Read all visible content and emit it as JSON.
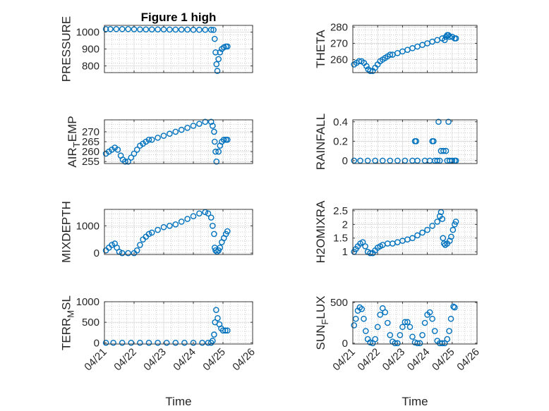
{
  "figure": {
    "title": "Figure 1 high"
  },
  "style": {
    "marker_color": "#0072bd",
    "axes_color": "#262626",
    "grid_color": "#b0b0b0",
    "grid": "major+minor dotted"
  },
  "chart_data": [
    {
      "type": "scatter",
      "ylabel": "PRESSURE",
      "title": "Figure 1 high",
      "xlim": [
        0,
        5
      ],
      "xticks": [
        0,
        1,
        2,
        3,
        4,
        5
      ],
      "xticklabels": [
        "04/21",
        "04/22",
        "04/23",
        "04/24",
        "04/25",
        "04/26"
      ],
      "ylim": [
        760,
        1040
      ],
      "yticks": [
        800,
        900,
        1000
      ],
      "yticklabels": [
        "800",
        "900",
        "1000"
      ],
      "points": [
        [
          0.05,
          1018
        ],
        [
          0.2,
          1018
        ],
        [
          0.4,
          1018
        ],
        [
          0.6,
          1018
        ],
        [
          0.8,
          1018
        ],
        [
          1,
          1017
        ],
        [
          1.2,
          1016
        ],
        [
          1.4,
          1016
        ],
        [
          1.6,
          1016
        ],
        [
          1.8,
          1016
        ],
        [
          2,
          1016
        ],
        [
          2.2,
          1015
        ],
        [
          2.4,
          1015
        ],
        [
          2.6,
          1015
        ],
        [
          2.8,
          1015
        ],
        [
          3,
          1014
        ],
        [
          3.2,
          1014
        ],
        [
          3.4,
          1014
        ],
        [
          3.6,
          1014
        ],
        [
          3.68,
          1013
        ],
        [
          3.72,
          960
        ],
        [
          3.75,
          880
        ],
        [
          3.78,
          810
        ],
        [
          3.81,
          770
        ],
        [
          3.85,
          840
        ],
        [
          3.9,
          880
        ],
        [
          3.96,
          900
        ],
        [
          4.03,
          910
        ],
        [
          4.1,
          915
        ],
        [
          4.15,
          915
        ]
      ]
    },
    {
      "type": "scatter",
      "ylabel": "THETA",
      "xlim": [
        0,
        5
      ],
      "xticks": [
        0,
        1,
        2,
        3,
        4,
        5
      ],
      "xticklabels": [
        "04/21",
        "04/22",
        "04/23",
        "04/24",
        "04/25",
        "04/26"
      ],
      "ylim": [
        252,
        281
      ],
      "yticks": [
        260,
        270,
        280
      ],
      "yticklabels": [
        "260",
        "270",
        "280"
      ],
      "points": [
        [
          0.05,
          257
        ],
        [
          0.15,
          258
        ],
        [
          0.25,
          259
        ],
        [
          0.35,
          259
        ],
        [
          0.45,
          258
        ],
        [
          0.55,
          256
        ],
        [
          0.62,
          254
        ],
        [
          0.7,
          253
        ],
        [
          0.8,
          253
        ],
        [
          0.9,
          255
        ],
        [
          1,
          257
        ],
        [
          1.1,
          259
        ],
        [
          1.2,
          260
        ],
        [
          1.3,
          261
        ],
        [
          1.4,
          262
        ],
        [
          1.5,
          263
        ],
        [
          1.6,
          263
        ],
        [
          1.8,
          264
        ],
        [
          2,
          265
        ],
        [
          2.2,
          266
        ],
        [
          2.4,
          267
        ],
        [
          2.6,
          268
        ],
        [
          2.8,
          269
        ],
        [
          3,
          270
        ],
        [
          3.2,
          271
        ],
        [
          3.4,
          272
        ],
        [
          3.6,
          273
        ],
        [
          3.7,
          272
        ],
        [
          3.75,
          274
        ],
        [
          3.8,
          275
        ],
        [
          3.85,
          275
        ],
        [
          3.9,
          274
        ],
        [
          4,
          274
        ],
        [
          4.1,
          273
        ],
        [
          4.15,
          273
        ]
      ]
    },
    {
      "type": "scatter",
      "ylabel": "AIR_TEMP",
      "xlim": [
        0,
        5
      ],
      "xticks": [
        0,
        1,
        2,
        3,
        4,
        5
      ],
      "xticklabels": [
        "04/21",
        "04/22",
        "04/23",
        "04/24",
        "04/25",
        "04/26"
      ],
      "ylim": [
        254,
        276
      ],
      "yticks": [
        255,
        260,
        265,
        270
      ],
      "yticklabels": [
        "255",
        "260",
        "265",
        "270"
      ],
      "points": [
        [
          0.05,
          259
        ],
        [
          0.15,
          260
        ],
        [
          0.25,
          261
        ],
        [
          0.35,
          262
        ],
        [
          0.45,
          261
        ],
        [
          0.55,
          258
        ],
        [
          0.62,
          256
        ],
        [
          0.7,
          255
        ],
        [
          0.8,
          255
        ],
        [
          0.9,
          257
        ],
        [
          1,
          259
        ],
        [
          1.1,
          261
        ],
        [
          1.2,
          263
        ],
        [
          1.3,
          264
        ],
        [
          1.4,
          265
        ],
        [
          1.5,
          266
        ],
        [
          1.6,
          266
        ],
        [
          1.8,
          267
        ],
        [
          2,
          268
        ],
        [
          2.2,
          269
        ],
        [
          2.4,
          270
        ],
        [
          2.6,
          271
        ],
        [
          2.8,
          272
        ],
        [
          3,
          273
        ],
        [
          3.2,
          274
        ],
        [
          3.4,
          275
        ],
        [
          3.6,
          275
        ],
        [
          3.65,
          273
        ],
        [
          3.7,
          270
        ],
        [
          3.72,
          265
        ],
        [
          3.75,
          260
        ],
        [
          3.78,
          255
        ],
        [
          3.85,
          260
        ],
        [
          3.9,
          263
        ],
        [
          3.96,
          265
        ],
        [
          4.03,
          266
        ],
        [
          4.1,
          266
        ],
        [
          4.15,
          266
        ]
      ]
    },
    {
      "type": "scatter",
      "ylabel": "RAINFALL",
      "xlim": [
        0,
        5
      ],
      "xticks": [
        0,
        1,
        2,
        3,
        4,
        5
      ],
      "xticklabels": [
        "04/21",
        "04/22",
        "04/23",
        "04/24",
        "04/25",
        "04/26"
      ],
      "ylim": [
        -0.03,
        0.42
      ],
      "yticks": [
        0,
        0.2,
        0.4
      ],
      "yticklabels": [
        "0",
        "0.2",
        "0.4"
      ],
      "points": [
        [
          0.05,
          0
        ],
        [
          0.3,
          0
        ],
        [
          0.6,
          0
        ],
        [
          0.9,
          0
        ],
        [
          1.2,
          0
        ],
        [
          1.5,
          0
        ],
        [
          1.8,
          0
        ],
        [
          2.1,
          0
        ],
        [
          2.4,
          0
        ],
        [
          2.5,
          0.2
        ],
        [
          2.55,
          0.2
        ],
        [
          2.6,
          0
        ],
        [
          2.9,
          0
        ],
        [
          3.1,
          0
        ],
        [
          3.2,
          0.2
        ],
        [
          3.25,
          0.2
        ],
        [
          3.3,
          0
        ],
        [
          3.4,
          0
        ],
        [
          3.45,
          0.4
        ],
        [
          3.5,
          0
        ],
        [
          3.55,
          0.1
        ],
        [
          3.65,
          0.1
        ],
        [
          3.75,
          0.1
        ],
        [
          3.8,
          0
        ],
        [
          3.85,
          0.4
        ],
        [
          3.9,
          0
        ],
        [
          4.0,
          0
        ],
        [
          4.1,
          0
        ],
        [
          4.15,
          0
        ]
      ]
    },
    {
      "type": "scatter",
      "ylabel": "MIXDEPTH",
      "xlim": [
        0,
        5
      ],
      "xticks": [
        0,
        1,
        2,
        3,
        4,
        5
      ],
      "xticklabels": [
        "04/21",
        "04/22",
        "04/23",
        "04/24",
        "04/25",
        "04/26"
      ],
      "ylim": [
        -50,
        1600
      ],
      "yticks": [
        0,
        1000
      ],
      "yticklabels": [
        "0",
        "1000"
      ],
      "points": [
        [
          0.05,
          100
        ],
        [
          0.15,
          200
        ],
        [
          0.25,
          300
        ],
        [
          0.35,
          350
        ],
        [
          0.42,
          200
        ],
        [
          0.5,
          50
        ],
        [
          0.6,
          0
        ],
        [
          0.8,
          0
        ],
        [
          1,
          0
        ],
        [
          1.1,
          100
        ],
        [
          1.2,
          300
        ],
        [
          1.3,
          500
        ],
        [
          1.4,
          600
        ],
        [
          1.5,
          700
        ],
        [
          1.6,
          750
        ],
        [
          1.8,
          850
        ],
        [
          2,
          950
        ],
        [
          2.2,
          1000
        ],
        [
          2.4,
          1050
        ],
        [
          2.6,
          1150
        ],
        [
          2.8,
          1250
        ],
        [
          3,
          1350
        ],
        [
          3.2,
          1450
        ],
        [
          3.4,
          1500
        ],
        [
          3.5,
          1450
        ],
        [
          3.6,
          1300
        ],
        [
          3.65,
          1000
        ],
        [
          3.7,
          700
        ],
        [
          3.72,
          200
        ],
        [
          3.75,
          100
        ],
        [
          3.8,
          50
        ],
        [
          3.85,
          100
        ],
        [
          3.9,
          200
        ],
        [
          3.96,
          400
        ],
        [
          4.03,
          550
        ],
        [
          4.1,
          700
        ],
        [
          4.15,
          800
        ]
      ]
    },
    {
      "type": "scatter",
      "ylabel": "H2OMIXRA",
      "xlim": [
        0,
        5
      ],
      "xticks": [
        0,
        1,
        2,
        3,
        4,
        5
      ],
      "xticklabels": [
        "04/21",
        "04/22",
        "04/23",
        "04/24",
        "04/25",
        "04/26"
      ],
      "ylim": [
        0.9,
        2.55
      ],
      "yticks": [
        1,
        1.5,
        2,
        2.5
      ],
      "yticklabels": [
        "1",
        "1.5",
        "2",
        "2.5"
      ],
      "points": [
        [
          0.05,
          1.0
        ],
        [
          0.12,
          1.1
        ],
        [
          0.2,
          1.2
        ],
        [
          0.3,
          1.3
        ],
        [
          0.4,
          1.35
        ],
        [
          0.5,
          1.2
        ],
        [
          0.6,
          1.0
        ],
        [
          0.7,
          0.95
        ],
        [
          0.8,
          0.95
        ],
        [
          0.9,
          1.05
        ],
        [
          1,
          1.15
        ],
        [
          1.1,
          1.2
        ],
        [
          1.2,
          1.25
        ],
        [
          1.4,
          1.3
        ],
        [
          1.6,
          1.3
        ],
        [
          1.8,
          1.35
        ],
        [
          2,
          1.4
        ],
        [
          2.2,
          1.45
        ],
        [
          2.4,
          1.5
        ],
        [
          2.6,
          1.6
        ],
        [
          2.8,
          1.7
        ],
        [
          3,
          1.8
        ],
        [
          3.2,
          1.95
        ],
        [
          3.4,
          2.1
        ],
        [
          3.5,
          2.3
        ],
        [
          3.55,
          2.45
        ],
        [
          3.6,
          2.2
        ],
        [
          3.63,
          1.5
        ],
        [
          3.67,
          1.3
        ],
        [
          3.72,
          1.25
        ],
        [
          3.8,
          1.3
        ],
        [
          3.9,
          1.4
        ],
        [
          3.96,
          1.55
        ],
        [
          4.03,
          1.8
        ],
        [
          4.1,
          2.0
        ],
        [
          4.15,
          2.1
        ]
      ]
    },
    {
      "type": "scatter",
      "ylabel": "TERR_MSL",
      "xlabel": "Time",
      "xlim": [
        0,
        5
      ],
      "xticks": [
        0,
        1,
        2,
        3,
        4,
        5
      ],
      "xticklabels": [
        "04/21",
        "04/22",
        "04/23",
        "04/24",
        "04/25",
        "04/26"
      ],
      "ylim": [
        -30,
        1000
      ],
      "yticks": [
        0,
        500,
        1000
      ],
      "yticklabels": [
        "0",
        "500",
        "1000"
      ],
      "points": [
        [
          0.05,
          0
        ],
        [
          0.3,
          0
        ],
        [
          0.6,
          0
        ],
        [
          0.9,
          0
        ],
        [
          1.2,
          0
        ],
        [
          1.5,
          0
        ],
        [
          1.8,
          0
        ],
        [
          2.1,
          0
        ],
        [
          2.4,
          0
        ],
        [
          2.7,
          0
        ],
        [
          3,
          0
        ],
        [
          3.3,
          0
        ],
        [
          3.5,
          0
        ],
        [
          3.6,
          0
        ],
        [
          3.65,
          50
        ],
        [
          3.7,
          200
        ],
        [
          3.73,
          500
        ],
        [
          3.77,
          800
        ],
        [
          3.82,
          600
        ],
        [
          3.88,
          450
        ],
        [
          3.94,
          350
        ],
        [
          4.0,
          300
        ],
        [
          4.08,
          300
        ],
        [
          4.15,
          300
        ]
      ]
    },
    {
      "type": "scatter",
      "ylabel": "SUN_FLUX",
      "xlabel": "Time",
      "xlim": [
        0,
        5
      ],
      "xticks": [
        0,
        1,
        2,
        3,
        4,
        5
      ],
      "xticklabels": [
        "04/21",
        "04/22",
        "04/23",
        "04/24",
        "04/25",
        "04/26"
      ],
      "ylim": [
        -10,
        510
      ],
      "yticks": [
        0,
        500
      ],
      "yticklabels": [
        "0",
        "500"
      ],
      "points": [
        [
          0.05,
          220
        ],
        [
          0.12,
          300
        ],
        [
          0.2,
          400
        ],
        [
          0.28,
          440
        ],
        [
          0.36,
          420
        ],
        [
          0.44,
          300
        ],
        [
          0.52,
          150
        ],
        [
          0.6,
          50
        ],
        [
          0.7,
          10
        ],
        [
          0.8,
          0
        ],
        [
          0.9,
          50
        ],
        [
          1,
          200
        ],
        [
          1.1,
          350
        ],
        [
          1.2,
          430
        ],
        [
          1.3,
          380
        ],
        [
          1.4,
          250
        ],
        [
          1.5,
          100
        ],
        [
          1.6,
          20
        ],
        [
          1.7,
          0
        ],
        [
          1.8,
          0
        ],
        [
          1.9,
          100
        ],
        [
          2,
          200
        ],
        [
          2.1,
          260
        ],
        [
          2.2,
          260
        ],
        [
          2.3,
          200
        ],
        [
          2.4,
          80
        ],
        [
          2.5,
          10
        ],
        [
          2.6,
          0
        ],
        [
          2.7,
          0
        ],
        [
          2.8,
          100
        ],
        [
          2.9,
          250
        ],
        [
          3,
          350
        ],
        [
          3.1,
          380
        ],
        [
          3.2,
          300
        ],
        [
          3.3,
          150
        ],
        [
          3.4,
          30
        ],
        [
          3.5,
          0
        ],
        [
          3.6,
          0
        ],
        [
          3.7,
          0
        ],
        [
          3.8,
          50
        ],
        [
          3.88,
          150
        ],
        [
          3.95,
          300
        ],
        [
          4.05,
          450
        ],
        [
          4.1,
          440
        ]
      ]
    }
  ]
}
